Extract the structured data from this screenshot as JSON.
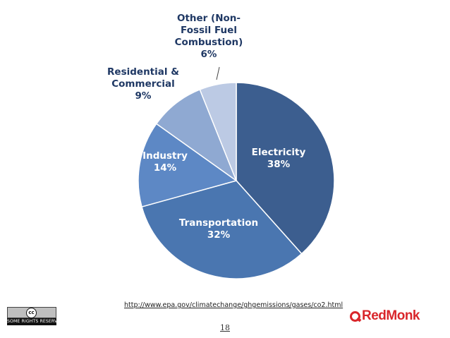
{
  "chart_data": {
    "type": "pie",
    "slices": [
      {
        "label": [
          "Electricity"
        ],
        "pct_label": "38%",
        "value": 38,
        "color": "#3c5e8f"
      },
      {
        "label": [
          "Transportation"
        ],
        "pct_label": "32%",
        "value": 32,
        "color": "#4a76b0"
      },
      {
        "label": [
          "Industry"
        ],
        "pct_label": "14%",
        "value": 14,
        "color": "#5d88c5"
      },
      {
        "label": [
          "Residential &",
          "Commercial"
        ],
        "pct_label": "9%",
        "value": 9,
        "color": "#8fa9d2"
      },
      {
        "label": [
          "Other (Non-",
          "Fossil Fuel",
          "Combustion)"
        ],
        "pct_label": "6%",
        "value": 6,
        "color": "#bccae4"
      }
    ],
    "inside_label_color": "#ffffff",
    "outside_label_color": "#1f3864"
  },
  "footer": {
    "source_url": "http://www.epa.gov/climatechange/ghgemissions/gases/co2.html",
    "page_number": "18",
    "cc_badge_text": "SOME RIGHTS RESERVED",
    "cc_symbol": "cc",
    "logo_text": "RedMonk"
  }
}
